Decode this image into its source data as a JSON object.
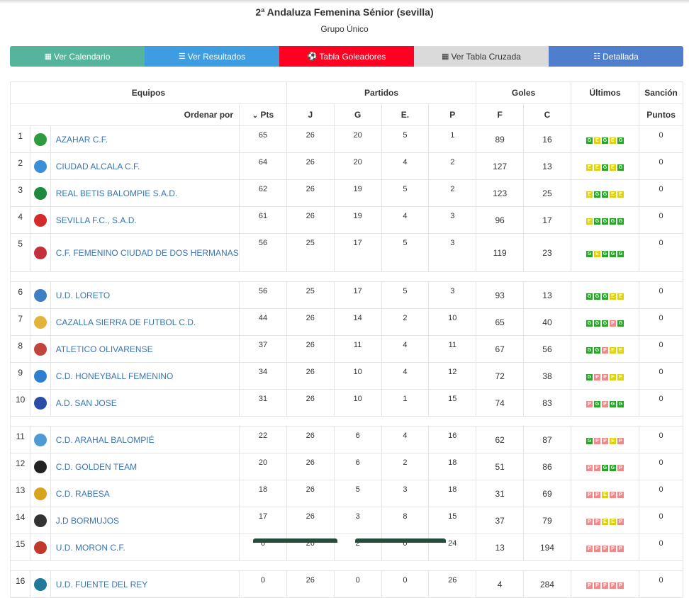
{
  "header": {
    "title": "2ª Andaluza Femenina Sénior (sevilla)",
    "subtitle": "Grupo Único"
  },
  "nav": [
    {
      "label": "Ver Calendario",
      "icon": "calendar-icon",
      "color": "#55b59c"
    },
    {
      "label": "Ver Resultados",
      "icon": "list-icon",
      "color": "#3e9ce0"
    },
    {
      "label": "Tabla Goleadores",
      "icon": "soccer-ball-icon",
      "color": "#ff0022"
    },
    {
      "label": "Ver Tabla Cruzada",
      "icon": "grid-icon",
      "color": "#dadada"
    },
    {
      "label": "Detallada",
      "icon": "table-list-icon",
      "color": "#4f7fcc"
    }
  ],
  "table": {
    "group_headers": {
      "equipos": "Equipos",
      "partidos": "Partidos",
      "goles": "Goles",
      "ultimos": "Últimos",
      "sancion": "Sanción"
    },
    "sub_headers": {
      "ordenar": "Ordenar por",
      "pts": "Pts",
      "j": "J",
      "g": "G",
      "e": "E.",
      "p": "P",
      "f": "F",
      "c": "C",
      "puntos": "Puntos"
    },
    "rows": [
      {
        "pos": "1",
        "team": "AZAHAR C.F.",
        "pts": "65",
        "j": "26",
        "g": "20",
        "e": "5",
        "p": "1",
        "f": "89",
        "c": "16",
        "last": [
          "G",
          "E",
          "G",
          "E",
          "G"
        ],
        "sancion": "0",
        "crest_color": "#2e9b3e"
      },
      {
        "pos": "2",
        "team": "CIUDAD ALCALA C.F.",
        "pts": "64",
        "j": "26",
        "g": "20",
        "e": "4",
        "p": "2",
        "f": "127",
        "c": "13",
        "last": [
          "E",
          "E",
          "G",
          "E",
          "G"
        ],
        "sancion": "0",
        "crest_color": "#3a8fd8"
      },
      {
        "pos": "3",
        "team": "REAL BETIS BALOMPIE S.A.D.",
        "pts": "62",
        "j": "26",
        "g": "19",
        "e": "5",
        "p": "2",
        "f": "123",
        "c": "25",
        "last": [
          "E",
          "G",
          "G",
          "E",
          "E"
        ],
        "sancion": "0",
        "crest_color": "#1d8a3d"
      },
      {
        "pos": "4",
        "team": "SEVILLA F.C., S.A.D.",
        "pts": "61",
        "j": "26",
        "g": "19",
        "e": "4",
        "p": "3",
        "f": "96",
        "c": "17",
        "last": [
          "E",
          "G",
          "G",
          "G",
          "G"
        ],
        "sancion": "0",
        "crest_color": "#d42a2a"
      },
      {
        "pos": "5",
        "team": "C.F. FEMENINO CIUDAD DE DOS HERMANAS",
        "pts": "56",
        "j": "25",
        "g": "17",
        "e": "5",
        "p": "3",
        "f": "119",
        "c": "23",
        "last": [
          "G",
          "E",
          "G",
          "G",
          "G"
        ],
        "sancion": "0",
        "crest_color": "#c3303a"
      },
      {
        "pos": "6",
        "team": "U.D. LORETO",
        "pts": "56",
        "j": "25",
        "g": "17",
        "e": "5",
        "p": "3",
        "f": "93",
        "c": "13",
        "last": [
          "G",
          "G",
          "G",
          "E",
          "E"
        ],
        "sancion": "0",
        "crest_color": "#3e7fc4"
      },
      {
        "pos": "7",
        "team": "CAZALLA SIERRA DE FUTBOL C.D.",
        "pts": "44",
        "j": "26",
        "g": "14",
        "e": "2",
        "p": "10",
        "f": "65",
        "c": "40",
        "last": [
          "G",
          "G",
          "G",
          "P",
          "G"
        ],
        "sancion": "0",
        "crest_color": "#e2b43a"
      },
      {
        "pos": "8",
        "team": "ATLETICO OLIVARENSE",
        "pts": "37",
        "j": "26",
        "g": "11",
        "e": "4",
        "p": "11",
        "f": "67",
        "c": "56",
        "last": [
          "G",
          "G",
          "P",
          "E",
          "E"
        ],
        "sancion": "0",
        "crest_color": "#c0443c"
      },
      {
        "pos": "9",
        "team": "C.D. HONEYBALL FEMENINO",
        "pts": "34",
        "j": "26",
        "g": "10",
        "e": "4",
        "p": "12",
        "f": "72",
        "c": "38",
        "last": [
          "G",
          "P",
          "P",
          "E",
          "E"
        ],
        "sancion": "0",
        "crest_color": "#2f7fd1"
      },
      {
        "pos": "10",
        "team": "A.D. SAN JOSE",
        "pts": "31",
        "j": "26",
        "g": "10",
        "e": "1",
        "p": "15",
        "f": "74",
        "c": "83",
        "last": [
          "P",
          "G",
          "P",
          "G",
          "G"
        ],
        "sancion": "0",
        "crest_color": "#2a4ea8"
      },
      {
        "pos": "11",
        "team": "C.D. ARAHAL BALOMPIÉ",
        "pts": "22",
        "j": "26",
        "g": "6",
        "e": "4",
        "p": "16",
        "f": "62",
        "c": "87",
        "last": [
          "G",
          "P",
          "P",
          "E",
          "P"
        ],
        "sancion": "0",
        "crest_color": "#4c9bd6"
      },
      {
        "pos": "12",
        "team": "C.D. GOLDEN TEAM",
        "pts": "20",
        "j": "26",
        "g": "6",
        "e": "2",
        "p": "18",
        "f": "51",
        "c": "86",
        "last": [
          "P",
          "P",
          "G",
          "G",
          "P"
        ],
        "sancion": "0",
        "crest_color": "#222222"
      },
      {
        "pos": "13",
        "team": "C.D. RABESA",
        "pts": "18",
        "j": "26",
        "g": "5",
        "e": "3",
        "p": "18",
        "f": "31",
        "c": "69",
        "last": [
          "P",
          "P",
          "E",
          "P",
          "P"
        ],
        "sancion": "0",
        "crest_color": "#d9a21f"
      },
      {
        "pos": "14",
        "team": "J.D BORMUJOS",
        "pts": "17",
        "j": "26",
        "g": "3",
        "e": "8",
        "p": "15",
        "f": "37",
        "c": "79",
        "last": [
          "P",
          "P",
          "E",
          "E",
          "P"
        ],
        "sancion": "0",
        "crest_color": "#333333"
      },
      {
        "pos": "15",
        "team": "U.D. MORON C.F.",
        "pts": "6",
        "j": "26",
        "g": "2",
        "e": "0",
        "p": "24",
        "f": "13",
        "c": "194",
        "last": [
          "P",
          "P",
          "P",
          "P",
          "P"
        ],
        "sancion": "0",
        "crest_color": "#c0392b"
      },
      {
        "pos": "16",
        "team": "U.D. FUENTE DEL REY",
        "pts": "0",
        "j": "26",
        "g": "0",
        "e": "0",
        "p": "26",
        "f": "4",
        "c": "284",
        "last": [
          "P",
          "P",
          "P",
          "P",
          "P"
        ],
        "sancion": "0",
        "crest_color": "#1f7a9c"
      }
    ]
  }
}
